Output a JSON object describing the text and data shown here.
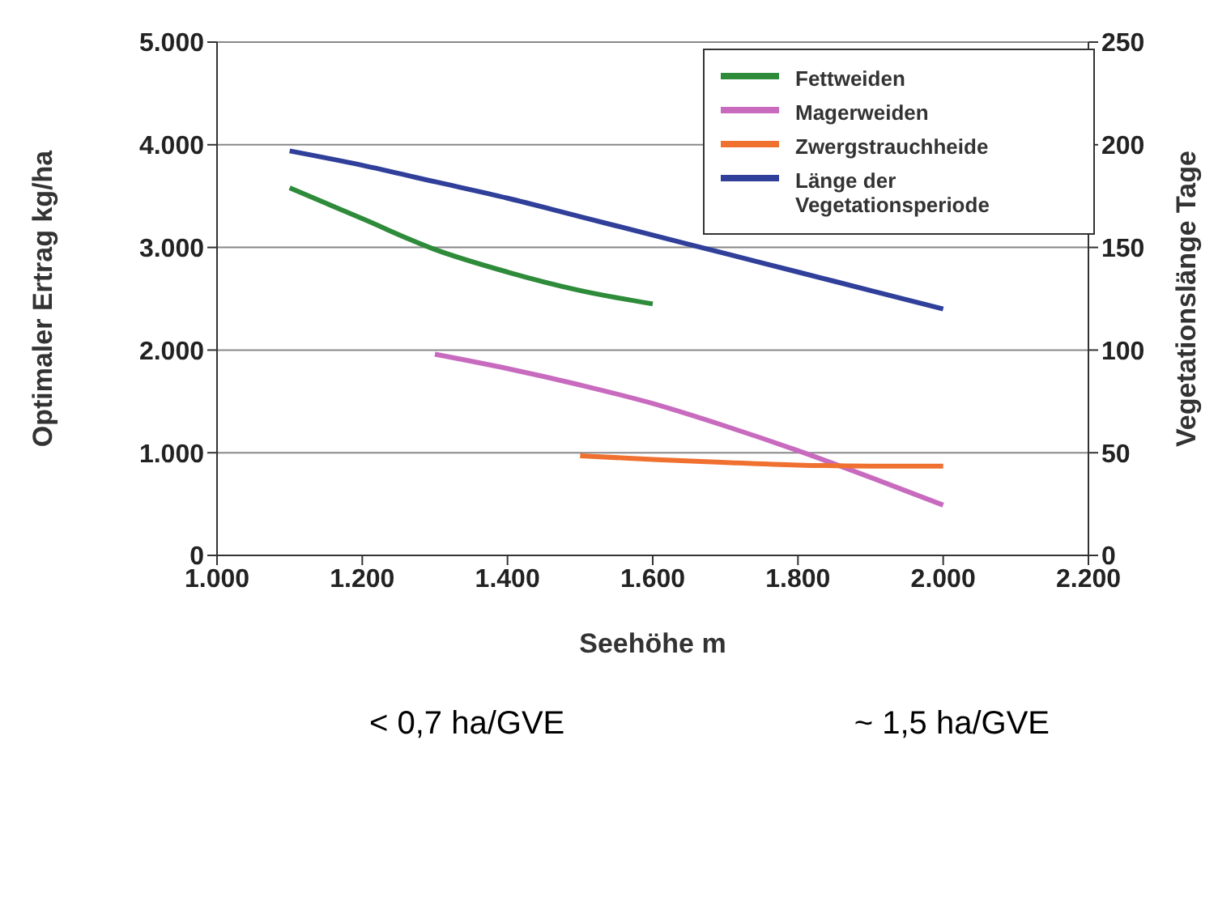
{
  "chart_data": {
    "type": "line",
    "xlabel": "Seehöhe m",
    "ylabel": "Optimaler Ertrag kg/ha",
    "y2label": "Vegetationslänge Tage",
    "xlim": [
      1000,
      2200
    ],
    "xticks": [
      {
        "value": 1000,
        "label": "1.000"
      },
      {
        "value": 1200,
        "label": "1.200"
      },
      {
        "value": 1400,
        "label": "1.400"
      },
      {
        "value": 1600,
        "label": "1.600"
      },
      {
        "value": 1800,
        "label": "1.800"
      },
      {
        "value": 2000,
        "label": "2.000"
      },
      {
        "value": 2200,
        "label": "2.200"
      }
    ],
    "ylim": [
      0,
      5000
    ],
    "yticks": [
      {
        "value": 0,
        "label": "0"
      },
      {
        "value": 1000,
        "label": "1.000"
      },
      {
        "value": 2000,
        "label": "2.000"
      },
      {
        "value": 3000,
        "label": "3.000"
      },
      {
        "value": 4000,
        "label": "4.000"
      },
      {
        "value": 5000,
        "label": "5.000"
      }
    ],
    "y2lim": [
      0,
      250
    ],
    "y2ticks": [
      0,
      50,
      100,
      150,
      200,
      250
    ],
    "grid": "y",
    "legend": "top right",
    "marker": "none",
    "line_style": "solid",
    "annotations": [
      "< 0,7 ha/GVE",
      "~ 1,5 ha/GVE"
    ],
    "series": [
      {
        "name": "Fettweiden",
        "color": "#2e8b3a",
        "x": [
          1100,
          1200,
          1300,
          1400,
          1500,
          1600
        ],
        "values": [
          3580,
          3280,
          2980,
          2760,
          2580,
          2450
        ]
      },
      {
        "name": "Magerweiden",
        "color": "#c86bbf",
        "x": [
          1300,
          1400,
          1500,
          1600,
          1700,
          1800,
          1900,
          2000
        ],
        "values": [
          1960,
          1820,
          1660,
          1480,
          1260,
          1020,
          760,
          490
        ]
      },
      {
        "name": "Zwergstrauchheide",
        "color": "#f07030",
        "x": [
          1500,
          1600,
          1700,
          1800,
          1900,
          2000
        ],
        "values": [
          970,
          935,
          905,
          880,
          870,
          870
        ]
      },
      {
        "name": "Länge der Vegetationsperiode",
        "color": "#2f3f9a",
        "axis": "y2",
        "x": [
          1100,
          1200,
          1300,
          1400,
          1500,
          1600,
          1700,
          1800,
          1900,
          2000
        ],
        "values": [
          197,
          190,
          182,
          174,
          165,
          156,
          147,
          138,
          129,
          120
        ]
      }
    ]
  }
}
